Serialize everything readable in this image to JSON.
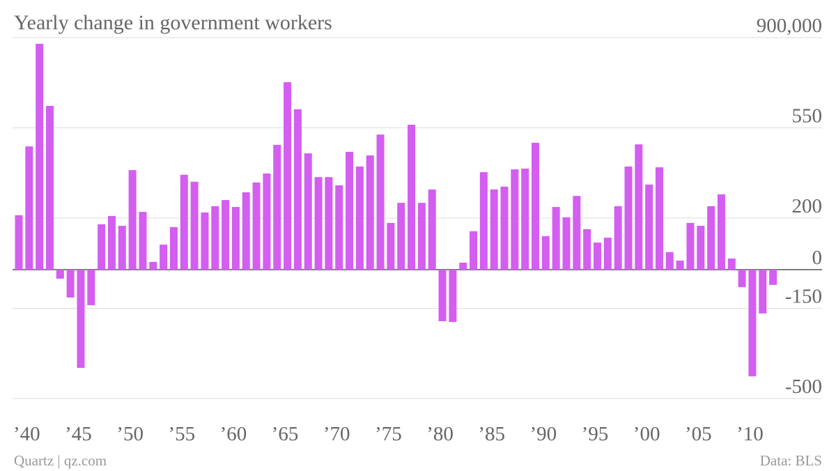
{
  "chart_data": {
    "type": "bar",
    "title": "Yearly change in government workers",
    "categories": [
      "’40",
      null,
      null,
      null,
      null,
      "’45",
      null,
      null,
      null,
      null,
      "’50",
      null,
      null,
      null,
      null,
      "’55",
      null,
      null,
      null,
      null,
      "’60",
      null,
      null,
      null,
      null,
      "’65",
      null,
      null,
      null,
      null,
      "’70",
      null,
      null,
      null,
      null,
      "’75",
      null,
      null,
      null,
      null,
      "’80",
      null,
      null,
      null,
      null,
      "’85",
      null,
      null,
      null,
      null,
      "’90",
      null,
      null,
      null,
      null,
      "’95",
      null,
      null,
      null,
      null,
      "’00",
      null,
      null,
      null,
      null,
      "’05",
      null,
      null,
      null,
      null,
      "’10",
      null,
      null,
      null
    ],
    "values": [
      211,
      478,
      876,
      635,
      -35,
      -108,
      -381,
      -138,
      176,
      208,
      170,
      386,
      224,
      30,
      97,
      165,
      368,
      341,
      222,
      246,
      270,
      243,
      300,
      338,
      373,
      484,
      727,
      622,
      451,
      359,
      359,
      327,
      457,
      400,
      443,
      524,
      181,
      259,
      562,
      259,
      311,
      -200,
      -203,
      27,
      149,
      378,
      311,
      322,
      389,
      392,
      492,
      130,
      243,
      203,
      286,
      157,
      105,
      124,
      246,
      400,
      486,
      330,
      397,
      68,
      35,
      181,
      170,
      246,
      292,
      43,
      -68,
      -414,
      -170,
      -59
    ],
    "color": "#d35ef0",
    "ylim": [
      -500,
      900
    ],
    "yticks": [
      -500,
      -150,
      0,
      200,
      550,
      {
        "value": 900,
        "label": "900,000"
      }
    ],
    "grid": true,
    "source": "Data: BLS",
    "credit": "Quartz | qz.com"
  }
}
